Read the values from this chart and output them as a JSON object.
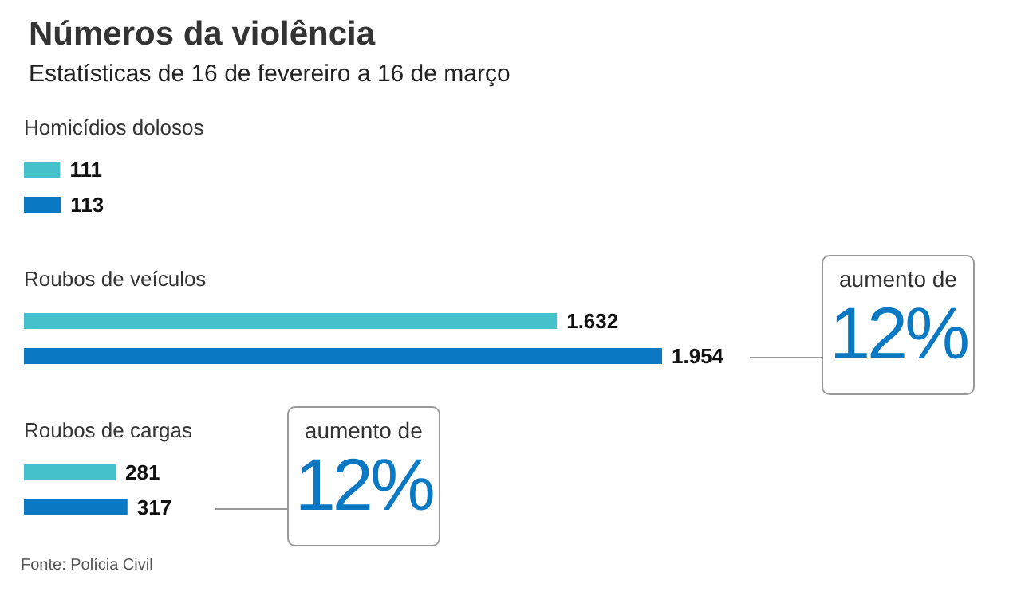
{
  "chart_data": {
    "type": "bar",
    "title": "Números da violência",
    "subtitle": "Estatísticas de 16 de fevereiro a 16 de março",
    "categories": [
      "Homicídios dolosos",
      "Roubos de veículos",
      "Roubos de cargas"
    ],
    "series": [
      {
        "color": "#45c1cb",
        "values": [
          111,
          1632,
          281
        ],
        "value_labels": [
          "111",
          "1.632",
          "281"
        ]
      },
      {
        "color": "#0a78c2",
        "values": [
          113,
          1954,
          317
        ],
        "value_labels": [
          "113",
          "1.954",
          "317"
        ]
      }
    ],
    "annotations": [
      {
        "text": "aumento de\n12%",
        "x": 1954,
        "y": "Roubos de veículos"
      },
      {
        "text": "aumento de\n12%",
        "x": 317,
        "y": "Roubos de cargas"
      },
      "Fonte: Polícia Civil"
    ],
    "orientation": "horizontal"
  }
}
